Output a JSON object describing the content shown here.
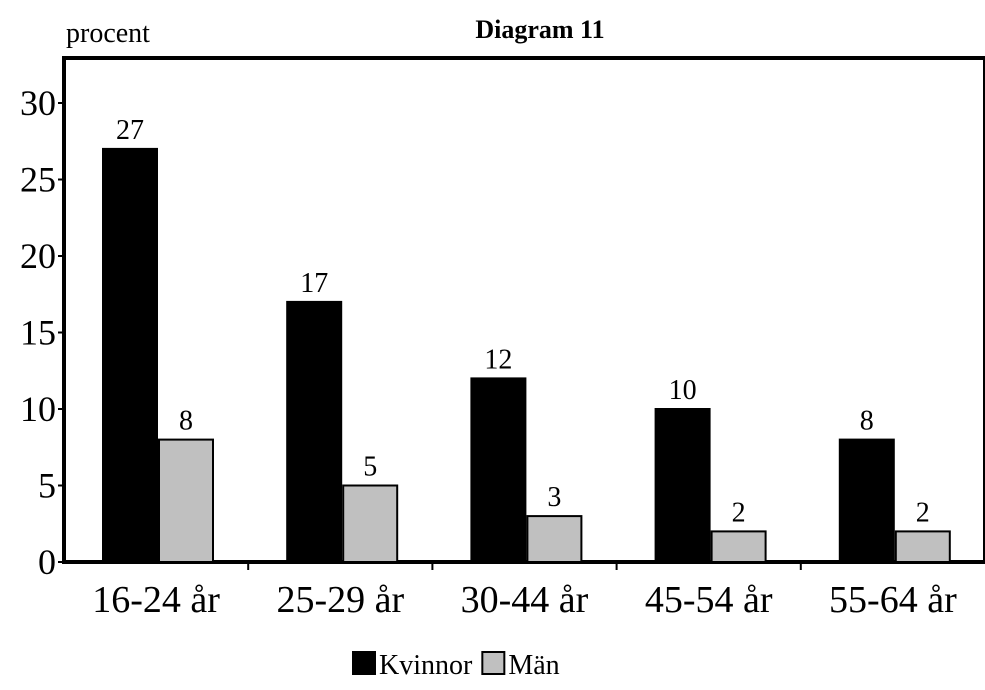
{
  "chart_data": {
    "type": "bar",
    "title": "Diagram 11",
    "ylabel": "procent",
    "xlabel": "",
    "categories": [
      "16-24 år",
      "25-29 år",
      "30-44 år",
      "45-54 år",
      "55-64 år"
    ],
    "series": [
      {
        "name": "Kvinnor",
        "values": [
          27,
          17,
          12,
          10,
          8
        ],
        "color": "#000000"
      },
      {
        "name": "Män",
        "values": [
          8,
          5,
          3,
          2,
          2
        ],
        "color": "#c0c0c0"
      }
    ],
    "ylim": [
      0,
      33
    ],
    "yticks": [
      0,
      5,
      10,
      15,
      20,
      25,
      30
    ],
    "grid": false,
    "legend_position": "bottom-center",
    "data_labels": true
  }
}
